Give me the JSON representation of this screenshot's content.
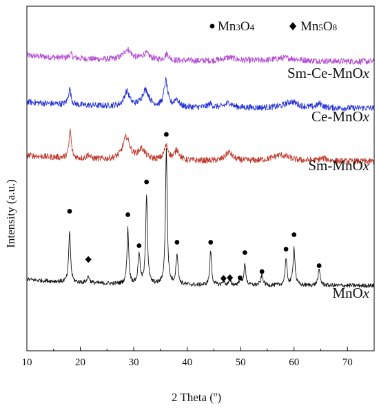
{
  "chart_data": {
    "type": "line",
    "xlabel": "2 Theta (",
    "xlabel_sup": "o",
    "xlabel_close": ")",
    "ylabel": "Intensity (a.u.)",
    "xlim": [
      10,
      75
    ],
    "xticks": [
      10,
      20,
      30,
      40,
      50,
      60,
      70
    ],
    "legend": {
      "position": "top-right",
      "items": [
        {
          "symbol": "circle",
          "prefix": "Mn",
          "sub1": "3",
          "mid": "O",
          "sub2": "4"
        },
        {
          "symbol": "diamond",
          "prefix": "Mn",
          "sub1": "5",
          "mid": "O",
          "sub2": "8"
        }
      ]
    },
    "series": [
      {
        "name": "Sm-Ce-MnO",
        "name_suffix": "x",
        "color": "#b34ad1",
        "baseline": 0.845,
        "peaks": [
          {
            "x": 18.2,
            "h": 0.012,
            "w": 0.35
          },
          {
            "x": 28.8,
            "h": 0.03,
            "w": 0.9
          },
          {
            "x": 32.3,
            "h": 0.018,
            "w": 0.9
          },
          {
            "x": 36.2,
            "h": 0.018,
            "w": 0.5
          },
          {
            "x": 47.8,
            "h": 0.01,
            "w": 1.5
          },
          {
            "x": 58.5,
            "h": 0.01,
            "w": 3.0
          }
        ]
      },
      {
        "name": "Ce-MnO",
        "name_suffix": "x",
        "color": "#2430d8",
        "baseline": 0.71,
        "peaks": [
          {
            "x": 18.0,
            "h": 0.045,
            "w": 0.3
          },
          {
            "x": 28.7,
            "h": 0.042,
            "w": 0.6
          },
          {
            "x": 32.2,
            "h": 0.048,
            "w": 0.8
          },
          {
            "x": 36.0,
            "h": 0.075,
            "w": 0.4
          },
          {
            "x": 38.0,
            "h": 0.022,
            "w": 0.5
          },
          {
            "x": 44.3,
            "h": 0.01,
            "w": 0.5
          },
          {
            "x": 47.8,
            "h": 0.014,
            "w": 0.8
          },
          {
            "x": 59.5,
            "h": 0.018,
            "w": 1.5
          },
          {
            "x": 64.8,
            "h": 0.012,
            "w": 0.6
          }
        ]
      },
      {
        "name": "Sm-MnO",
        "name_suffix": "x",
        "color": "#c0392b",
        "baseline": 0.555,
        "peaks": [
          {
            "x": 18.1,
            "h": 0.08,
            "w": 0.25
          },
          {
            "x": 21.5,
            "h": 0.012,
            "w": 0.3
          },
          {
            "x": 28.6,
            "h": 0.065,
            "w": 0.8
          },
          {
            "x": 31.5,
            "h": 0.03,
            "w": 0.8
          },
          {
            "x": 36.1,
            "h": 0.04,
            "w": 0.5
          },
          {
            "x": 38.1,
            "h": 0.03,
            "w": 0.5
          },
          {
            "x": 47.8,
            "h": 0.025,
            "w": 0.8
          },
          {
            "x": 57.5,
            "h": 0.018,
            "w": 2.0
          },
          {
            "x": 65.5,
            "h": 0.008,
            "w": 1.0
          }
        ]
      },
      {
        "name": "MnO",
        "name_suffix": "x",
        "color": "#141414",
        "baseline": 0.195,
        "peaks": [
          {
            "x": 18.0,
            "h": 0.15,
            "w": 0.2
          },
          {
            "x": 21.5,
            "h": 0.02,
            "w": 0.25
          },
          {
            "x": 28.9,
            "h": 0.16,
            "w": 0.2
          },
          {
            "x": 31.0,
            "h": 0.09,
            "w": 0.22
          },
          {
            "x": 32.4,
            "h": 0.26,
            "w": 0.2
          },
          {
            "x": 36.1,
            "h": 0.39,
            "w": 0.2
          },
          {
            "x": 38.1,
            "h": 0.09,
            "w": 0.22
          },
          {
            "x": 44.4,
            "h": 0.1,
            "w": 0.2
          },
          {
            "x": 46.8,
            "h": 0.01,
            "w": 0.25
          },
          {
            "x": 48.0,
            "h": 0.012,
            "w": 0.25
          },
          {
            "x": 49.9,
            "h": 0.015,
            "w": 0.25
          },
          {
            "x": 50.8,
            "h": 0.06,
            "w": 0.22
          },
          {
            "x": 54.0,
            "h": 0.03,
            "w": 0.25
          },
          {
            "x": 58.5,
            "h": 0.075,
            "w": 0.22
          },
          {
            "x": 60.0,
            "h": 0.11,
            "w": 0.22
          },
          {
            "x": 64.7,
            "h": 0.045,
            "w": 0.25
          }
        ],
        "markers": [
          {
            "x": 18.0,
            "y": 0.405,
            "symbol": "circle"
          },
          {
            "x": 21.5,
            "y": 0.265,
            "symbol": "diamond"
          },
          {
            "x": 28.9,
            "y": 0.395,
            "symbol": "circle"
          },
          {
            "x": 31.0,
            "y": 0.305,
            "symbol": "circle"
          },
          {
            "x": 32.4,
            "y": 0.49,
            "symbol": "circle"
          },
          {
            "x": 36.1,
            "y": 0.628,
            "symbol": "circle"
          },
          {
            "x": 38.1,
            "y": 0.315,
            "symbol": "circle"
          },
          {
            "x": 44.4,
            "y": 0.315,
            "symbol": "circle"
          },
          {
            "x": 46.8,
            "y": 0.21,
            "symbol": "diamond"
          },
          {
            "x": 48.0,
            "y": 0.212,
            "symbol": "diamond"
          },
          {
            "x": 49.9,
            "y": 0.212,
            "symbol": "circle"
          },
          {
            "x": 50.8,
            "y": 0.285,
            "symbol": "circle"
          },
          {
            "x": 54.0,
            "y": 0.23,
            "symbol": "circle"
          },
          {
            "x": 58.5,
            "y": 0.295,
            "symbol": "circle"
          },
          {
            "x": 60.0,
            "y": 0.337,
            "symbol": "circle"
          },
          {
            "x": 64.7,
            "y": 0.247,
            "symbol": "circle"
          }
        ]
      }
    ]
  }
}
